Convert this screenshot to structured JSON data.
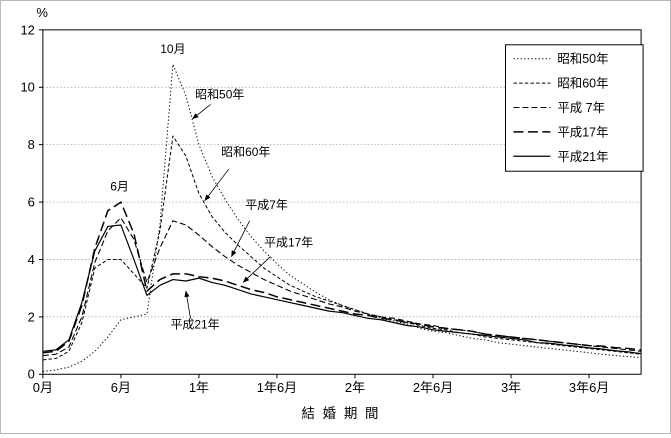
{
  "chart_data": {
    "type": "line",
    "title": "",
    "ylabel": "%",
    "xlabel": "結婚期間",
    "xlabel_display": "結 婚 期 間",
    "ylim": [
      0,
      12
    ],
    "yticks": [
      0,
      2,
      4,
      6,
      8,
      10,
      12
    ],
    "grid": true,
    "x_unit": "months_since_marriage",
    "xlim": [
      0,
      46
    ],
    "xticks": [
      {
        "month": 0,
        "label": "0月"
      },
      {
        "month": 6,
        "label": "6月"
      },
      {
        "month": 12,
        "label": "1年"
      },
      {
        "month": 18,
        "label": "1年6月"
      },
      {
        "month": 24,
        "label": "2年"
      },
      {
        "month": 30,
        "label": "2年6月"
      },
      {
        "month": 36,
        "label": "3年"
      },
      {
        "month": 42,
        "label": "3年6月"
      }
    ],
    "months": [
      0,
      1,
      2,
      3,
      4,
      5,
      6,
      7,
      8,
      9,
      10,
      11,
      12,
      13,
      14,
      15,
      16,
      17,
      18,
      19,
      20,
      21,
      22,
      23,
      24,
      25,
      26,
      27,
      28,
      29,
      30,
      31,
      32,
      33,
      34,
      35,
      36,
      37,
      38,
      39,
      40,
      41,
      42,
      43,
      44,
      45,
      46
    ],
    "series": [
      {
        "name": "昭和50年",
        "style": "dotted",
        "values": [
          0.1,
          0.15,
          0.25,
          0.45,
          0.8,
          1.3,
          1.9,
          2.0,
          2.1,
          5.2,
          10.8,
          9.7,
          8.0,
          6.9,
          6.1,
          5.4,
          4.8,
          4.3,
          3.85,
          3.45,
          3.15,
          2.85,
          2.6,
          2.4,
          2.25,
          2.1,
          1.95,
          1.85,
          1.75,
          1.6,
          1.5,
          1.45,
          1.35,
          1.25,
          1.2,
          1.1,
          1.05,
          1.0,
          0.95,
          0.9,
          0.85,
          0.8,
          0.75,
          0.7,
          0.65,
          0.62,
          0.58
        ]
      },
      {
        "name": "昭和60年",
        "style": "dash-fine",
        "values": [
          0.5,
          0.55,
          0.8,
          1.8,
          3.7,
          4.0,
          4.0,
          3.5,
          3.0,
          5.0,
          8.3,
          7.6,
          6.3,
          5.5,
          4.95,
          4.5,
          4.1,
          3.7,
          3.4,
          3.1,
          2.9,
          2.7,
          2.55,
          2.4,
          2.25,
          2.1,
          2.0,
          1.9,
          1.8,
          1.7,
          1.6,
          1.55,
          1.45,
          1.4,
          1.3,
          1.25,
          1.2,
          1.15,
          1.1,
          1.05,
          1.0,
          0.95,
          0.9,
          0.85,
          0.8,
          0.75,
          0.7
        ]
      },
      {
        "name": "平成7年",
        "style": "dash",
        "values": [
          0.65,
          0.7,
          0.95,
          2.0,
          3.9,
          5.0,
          5.45,
          4.7,
          3.2,
          4.4,
          5.35,
          5.2,
          4.85,
          4.45,
          4.1,
          3.8,
          3.55,
          3.3,
          3.1,
          2.9,
          2.75,
          2.6,
          2.45,
          2.35,
          2.2,
          2.1,
          2.0,
          1.95,
          1.85,
          1.75,
          1.7,
          1.6,
          1.55,
          1.5,
          1.4,
          1.35,
          1.3,
          1.25,
          1.2,
          1.15,
          1.1,
          1.05,
          1.0,
          0.95,
          0.9,
          0.85,
          0.8
        ]
      },
      {
        "name": "平成17年",
        "style": "dash-long",
        "values": [
          0.75,
          0.8,
          1.15,
          2.4,
          4.4,
          5.7,
          6.0,
          4.9,
          2.9,
          3.3,
          3.5,
          3.5,
          3.4,
          3.35,
          3.25,
          3.1,
          2.95,
          2.85,
          2.7,
          2.6,
          2.5,
          2.4,
          2.3,
          2.2,
          2.1,
          2.05,
          1.95,
          1.9,
          1.8,
          1.75,
          1.65,
          1.6,
          1.55,
          1.5,
          1.4,
          1.35,
          1.3,
          1.25,
          1.2,
          1.15,
          1.1,
          1.05,
          1.0,
          0.98,
          0.93,
          0.9,
          0.85
        ]
      },
      {
        "name": "平成21年",
        "style": "solid",
        "values": [
          0.8,
          0.85,
          1.2,
          2.5,
          4.3,
          5.15,
          5.2,
          4.0,
          2.75,
          3.1,
          3.3,
          3.25,
          3.35,
          3.2,
          3.1,
          2.95,
          2.8,
          2.7,
          2.6,
          2.5,
          2.4,
          2.3,
          2.2,
          2.15,
          2.05,
          1.95,
          1.9,
          1.8,
          1.7,
          1.65,
          1.55,
          1.5,
          1.45,
          1.4,
          1.35,
          1.3,
          1.25,
          1.2,
          1.1,
          1.08,
          1.02,
          0.98,
          0.92,
          0.88,
          0.82,
          0.78,
          0.72
        ]
      }
    ],
    "legend": {
      "position": "top-right",
      "entries": [
        "昭和50年",
        "昭和60年",
        "平成 7年",
        "平成17年",
        "平成21年"
      ]
    },
    "annotations": [
      {
        "text": "10月",
        "label_at": [
          10.0,
          11.2
        ]
      },
      {
        "text": "6月",
        "label_at": [
          5.9,
          6.4
        ]
      },
      {
        "text": "昭和50年",
        "label_at": [
          13.6,
          9.6
        ],
        "arrow_from": [
          12.9,
          9.4
        ],
        "arrow_to": [
          11.5,
          8.9
        ]
      },
      {
        "text": "昭和60年",
        "label_at": [
          15.6,
          7.6
        ],
        "arrow_from": [
          14.3,
          7.15
        ],
        "arrow_to": [
          12.45,
          6.05
        ]
      },
      {
        "text": "平成7年",
        "label_at": [
          17.2,
          5.75
        ],
        "arrow_from": [
          15.9,
          5.35
        ],
        "arrow_to": [
          14.5,
          4.1
        ]
      },
      {
        "text": "平成17年",
        "label_at": [
          18.9,
          4.45
        ],
        "arrow_from": [
          17.5,
          4.1
        ],
        "arrow_to": [
          15.4,
          3.2
        ]
      },
      {
        "text": "平成21年",
        "label_at": [
          11.7,
          1.6
        ],
        "arrow_from": [
          11.35,
          1.95
        ],
        "arrow_to": [
          11.0,
          2.9
        ]
      }
    ],
    "colors": {
      "line": "#000000",
      "grid": "#999999",
      "frame": "#000000",
      "background": "#ffffff"
    }
  }
}
